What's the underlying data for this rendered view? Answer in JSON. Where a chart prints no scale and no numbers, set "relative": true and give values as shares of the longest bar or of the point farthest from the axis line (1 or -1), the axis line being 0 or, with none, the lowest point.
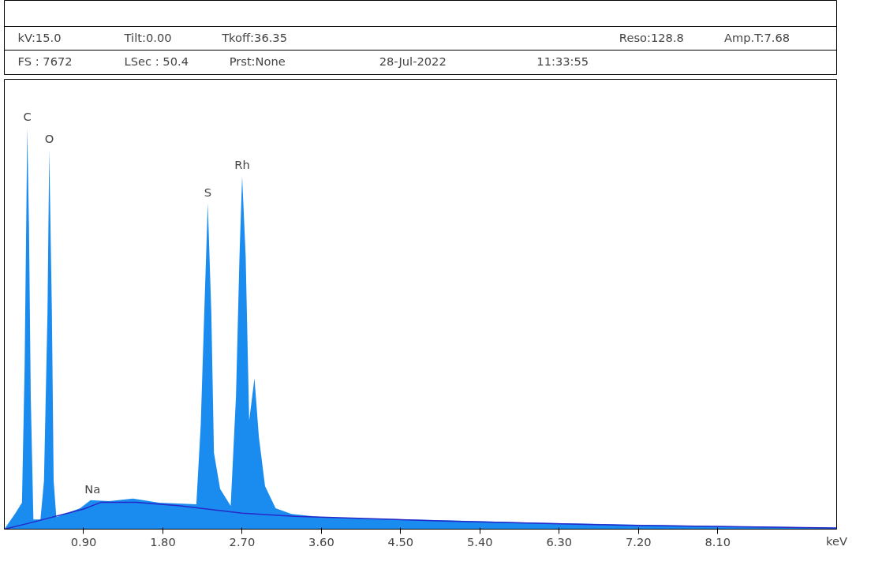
{
  "chart_data": {
    "type": "area",
    "relative": true,
    "xlabel": "keV",
    "xlim": [
      0,
      9.45
    ],
    "xticks": [
      {
        "value": 0.9,
        "label": "0.90"
      },
      {
        "value": 1.8,
        "label": "1.80"
      },
      {
        "value": 2.7,
        "label": "2.70"
      },
      {
        "value": 3.6,
        "label": "3.60"
      },
      {
        "value": 4.5,
        "label": "4.50"
      },
      {
        "value": 5.4,
        "label": "5.40"
      },
      {
        "value": 6.3,
        "label": "6.30"
      },
      {
        "value": 7.2,
        "label": "7.20"
      },
      {
        "value": 8.1,
        "label": "8.10"
      }
    ],
    "grid": false,
    "tick_labels": "x",
    "series": [
      {
        "color": "#1a8cf0",
        "x": [
          0,
          0.12,
          0.2,
          0.23,
          0.25,
          0.26,
          0.28,
          0.3,
          0.33,
          0.41,
          0.45,
          0.49,
          0.51,
          0.54,
          0.56,
          0.59,
          0.86,
          0.98,
          1.19,
          1.46,
          1.76,
          2.18,
          2.23,
          2.27,
          2.31,
          2.35,
          2.38,
          2.45,
          2.57,
          2.63,
          2.67,
          2.7,
          2.74,
          2.78,
          2.84,
          2.89,
          2.96,
          3.08,
          3.26,
          3.6,
          4.0,
          5.0,
          6.0,
          7.0,
          8.0,
          9.0,
          9.45
        ],
        "values": [
          0,
          0.038,
          0.066,
          0.4,
          0.79,
          1.0,
          0.75,
          0.33,
          0.024,
          0.024,
          0.12,
          0.54,
          0.944,
          0.54,
          0.12,
          0.03,
          0.052,
          0.072,
          0.07,
          0.076,
          0.066,
          0.062,
          0.26,
          0.54,
          0.811,
          0.54,
          0.19,
          0.1,
          0.058,
          0.33,
          0.68,
          0.879,
          0.68,
          0.27,
          0.376,
          0.23,
          0.107,
          0.052,
          0.038,
          0.03,
          0.027,
          0.022,
          0.016,
          0.012,
          0.008,
          0.005,
          0.003
        ]
      },
      {
        "type": "line",
        "color": "#2828c8",
        "x": [
          0,
          0.3,
          0.9,
          1.1,
          1.5,
          2.0,
          2.7,
          3.3,
          5.0,
          7.0,
          9.45
        ],
        "values": [
          0,
          0.016,
          0.05,
          0.067,
          0.067,
          0.058,
          0.04,
          0.032,
          0.02,
          0.01,
          0.003
        ]
      }
    ],
    "annotations": [
      {
        "text": "C",
        "x": 0.26,
        "y": 1.0
      },
      {
        "text": "O",
        "x": 0.51,
        "y": 0.944
      },
      {
        "text": "Na",
        "x": 1.0,
        "y": 0.072
      },
      {
        "text": "S",
        "x": 2.31,
        "y": 0.811
      },
      {
        "text": "Rh",
        "x": 2.7,
        "y": 0.879
      },
      "kV:15.0",
      "Tilt:0.00",
      "Tkoff:36.35",
      "Reso:128.8",
      "Amp.T:7.68",
      "FS : 7672",
      "LSec : 50.4",
      "Prst:None",
      "28-Jul-2022",
      "11:33:55"
    ]
  }
}
